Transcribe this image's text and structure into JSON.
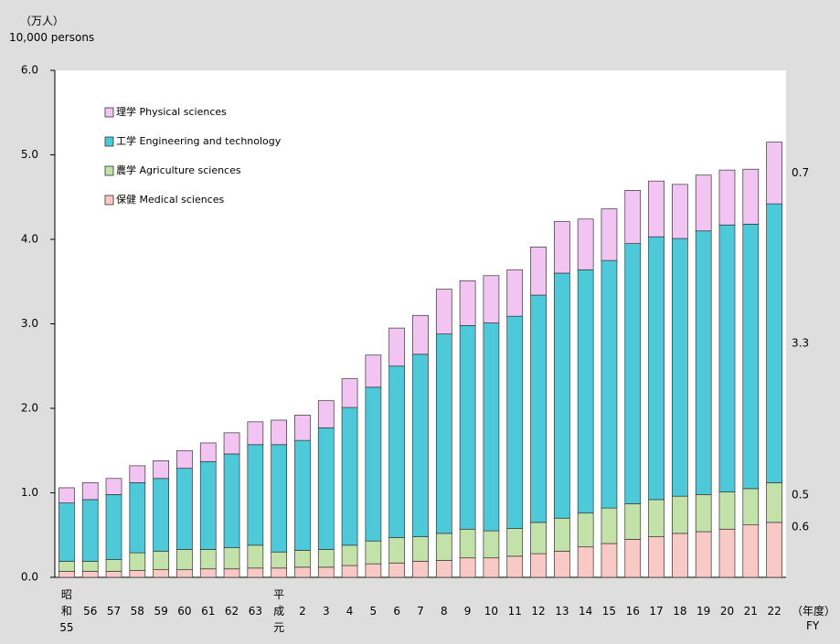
{
  "chart_data": {
    "type": "stacked_bar",
    "y_unit_label": "（万人）",
    "y_unit_label_en": "10,000 persons",
    "x_unit_label": "（年度）",
    "x_unit_label_en": "FY",
    "categories": [
      "昭和55",
      "56",
      "57",
      "58",
      "59",
      "60",
      "61",
      "62",
      "63",
      "平成元",
      "2",
      "3",
      "4",
      "5",
      "6",
      "7",
      "8",
      "9",
      "10",
      "11",
      "12",
      "13",
      "14",
      "15",
      "16",
      "17",
      "18",
      "19",
      "20",
      "21",
      "22"
    ],
    "series": [
      {
        "name": "保健 Medical sciences",
        "color": "#f9c9c6",
        "end_label": "0.6",
        "values": [
          0.07,
          0.07,
          0.07,
          0.08,
          0.09,
          0.09,
          0.1,
          0.1,
          0.11,
          0.11,
          0.12,
          0.12,
          0.14,
          0.16,
          0.17,
          0.19,
          0.2,
          0.23,
          0.23,
          0.25,
          0.28,
          0.31,
          0.36,
          0.4,
          0.45,
          0.48,
          0.52,
          0.54,
          0.57,
          0.62,
          0.65
        ]
      },
      {
        "name": "農学 Agriculture sciences",
        "color": "#c3e2a9",
        "end_label": "0.5",
        "values": [
          0.12,
          0.12,
          0.14,
          0.21,
          0.22,
          0.24,
          0.23,
          0.25,
          0.27,
          0.19,
          0.2,
          0.21,
          0.24,
          0.27,
          0.3,
          0.29,
          0.32,
          0.34,
          0.32,
          0.33,
          0.37,
          0.39,
          0.4,
          0.42,
          0.42,
          0.44,
          0.44,
          0.44,
          0.44,
          0.43,
          0.47
        ]
      },
      {
        "name": "工学 Engineering and technology",
        "color": "#4ec9d9",
        "end_label": "3.3",
        "values": [
          0.69,
          0.73,
          0.77,
          0.83,
          0.86,
          0.96,
          1.04,
          1.11,
          1.19,
          1.27,
          1.3,
          1.44,
          1.63,
          1.82,
          2.03,
          2.16,
          2.36,
          2.41,
          2.46,
          2.51,
          2.69,
          2.9,
          2.88,
          2.93,
          3.08,
          3.11,
          3.05,
          3.12,
          3.16,
          3.13,
          3.3
        ]
      },
      {
        "name": "理学 Physical sciences",
        "color": "#f2c4f2",
        "end_label": "0.7",
        "values": [
          0.18,
          0.2,
          0.19,
          0.2,
          0.21,
          0.21,
          0.22,
          0.25,
          0.27,
          0.29,
          0.3,
          0.32,
          0.34,
          0.38,
          0.45,
          0.46,
          0.53,
          0.53,
          0.56,
          0.55,
          0.57,
          0.61,
          0.6,
          0.61,
          0.63,
          0.66,
          0.64,
          0.66,
          0.65,
          0.65,
          0.73
        ]
      }
    ],
    "ylim": [
      0,
      6
    ],
    "yticks": [
      {
        "value": 0,
        "label": "0.0"
      },
      {
        "value": 1,
        "label": "1.0"
      },
      {
        "value": 2,
        "label": "2.0"
      },
      {
        "value": 3,
        "label": "3.0"
      },
      {
        "value": 4,
        "label": "4.0"
      },
      {
        "value": 5,
        "label": "5.0"
      },
      {
        "value": 6,
        "label": "6.0"
      }
    ],
    "legend": "upper left",
    "grid": false
  }
}
